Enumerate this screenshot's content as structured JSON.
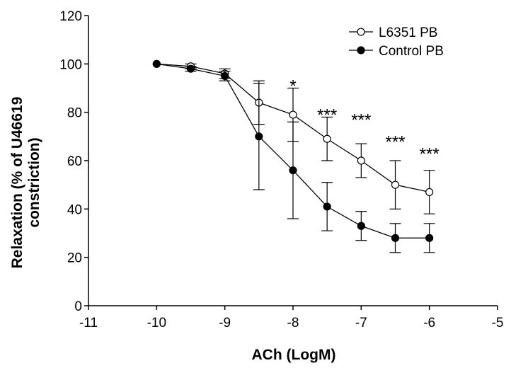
{
  "chart_data": {
    "type": "line",
    "title": "",
    "xlabel": "ACh (LogM)",
    "ylabel_line1": "Relaxation (% of U46619",
    "ylabel_line2": "constriction)",
    "xlim": [
      -11,
      -5
    ],
    "ylim": [
      0,
      120
    ],
    "x_ticks": [
      -11,
      -10,
      -9,
      -8,
      -7,
      -6,
      -5
    ],
    "x_tick_labels": [
      "-11",
      "-10",
      "-9",
      "-8",
      "-7",
      "-6",
      "-5"
    ],
    "y_ticks": [
      0,
      20,
      40,
      60,
      80,
      100,
      120
    ],
    "y_tick_labels": [
      "0",
      "20",
      "40",
      "60",
      "80",
      "100",
      "120"
    ],
    "grid": false,
    "legend_position": "top-right",
    "series": [
      {
        "name": "L6351 PB",
        "marker": "open-circle",
        "color": "#000000",
        "x": [
          -10,
          -9.5,
          -9,
          -8.5,
          -8,
          -7.5,
          -7,
          -6.5,
          -6
        ],
        "y": [
          100,
          99,
          96,
          84,
          79,
          69,
          60,
          50,
          47
        ],
        "err": [
          0,
          1,
          2,
          9,
          11,
          9,
          7,
          10,
          9
        ]
      },
      {
        "name": "Control PB",
        "marker": "filled-circle",
        "color": "#000000",
        "x": [
          -10,
          -9.5,
          -9,
          -8.5,
          -8,
          -7.5,
          -7,
          -6.5,
          -6
        ],
        "y": [
          100,
          98,
          95,
          70,
          56,
          41,
          33,
          28,
          28
        ],
        "err": [
          0,
          1,
          2,
          22,
          20,
          10,
          6,
          6,
          6
        ]
      }
    ],
    "annotations": [
      {
        "x": -8,
        "y": 92,
        "text": "*"
      },
      {
        "x": -7.5,
        "y": 80,
        "text": "***"
      },
      {
        "x": -7,
        "y": 78,
        "text": "***"
      },
      {
        "x": -6.5,
        "y": 69,
        "text": "***"
      },
      {
        "x": -6,
        "y": 64,
        "text": "***"
      }
    ]
  }
}
